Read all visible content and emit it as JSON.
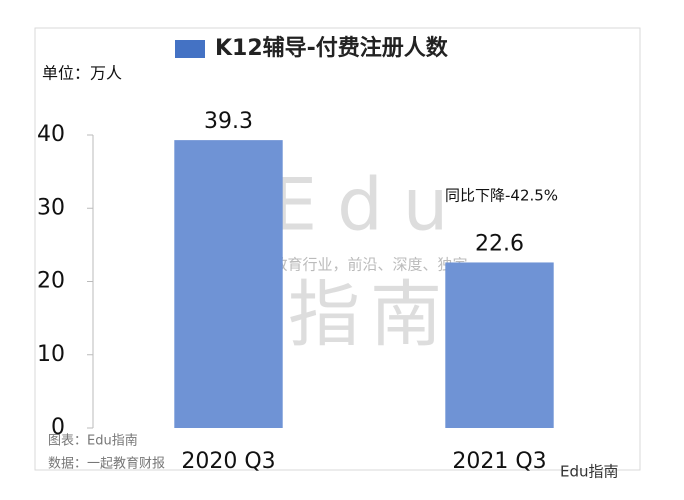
{
  "chart_data": {
    "type": "bar",
    "title": "K12辅导-付费注册人数",
    "unit_label": "单位：万人",
    "categories": [
      "2020 Q3",
      "2021 Q3"
    ],
    "values": [
      39.3,
      22.6
    ],
    "color": "#6f93d5",
    "legend_color": "#4472c4",
    "ylim": [
      0,
      40
    ],
    "yticks": [
      0,
      10,
      20,
      30,
      40
    ],
    "grid": false,
    "annotation": "同比下降-42.5%",
    "source_chart": "图表：Edu指南",
    "source_data": "数据：一起教育财报",
    "watermark": [
      "Edu",
      "指南",
      "教育行业，前沿、深度、独家"
    ],
    "logo": "Edu指南"
  }
}
